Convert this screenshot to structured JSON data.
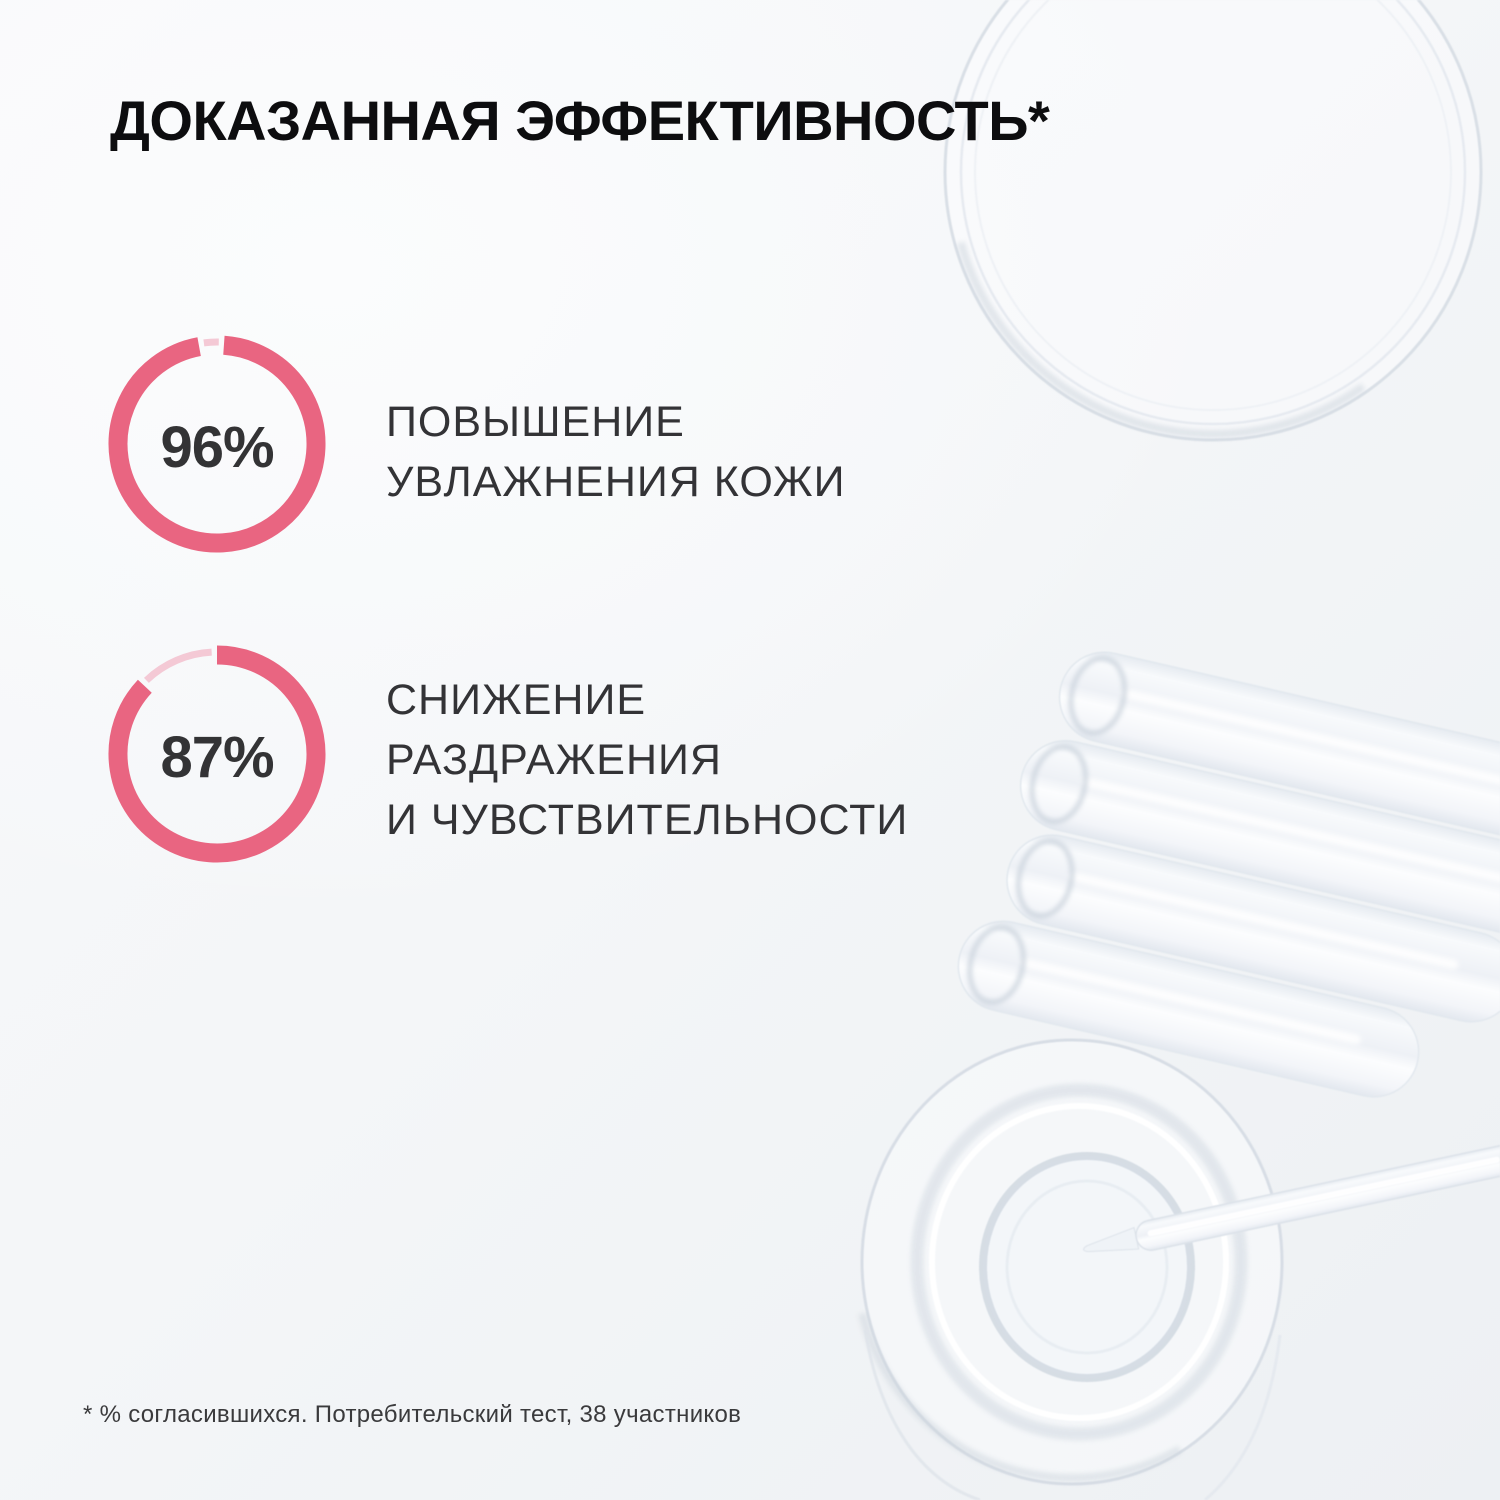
{
  "title": "ДОКАЗАННАЯ ЭФФЕКТИВНОСТЬ*",
  "stats": [
    {
      "value": "96%",
      "percent": 96,
      "label_lines": [
        "ПОВЫШЕНИЕ",
        "УВЛАЖНЕНИЯ КОЖИ"
      ]
    },
    {
      "value": "87%",
      "percent": 87,
      "label_lines": [
        "СНИЖЕНИЕ",
        "РАЗДРАЖЕНИЯ",
        "И ЧУВСТВИТЕЛЬНОСТИ"
      ]
    }
  ],
  "footnote": "* % согласившихся. Потребительский тест, 38 участников",
  "colors": {
    "ring_fill": "#e96581",
    "ring_track": "#f4c9d5",
    "title_text": "#0d0d0f",
    "body_text": "#333336",
    "background": "#f4f6f8",
    "glass_line": "#d7dde5"
  },
  "decor": {
    "top_right": "petri-dish",
    "middle_right": "glass-ampoules",
    "bottom_right": "jar-with-pipette"
  },
  "chart_data": [
    {
      "type": "pie",
      "style": "donut",
      "title": "ПОВЫШЕНИЕ УВЛАЖНЕНИЯ КОЖИ",
      "values": [
        96,
        4
      ],
      "value_label": "96%"
    },
    {
      "type": "pie",
      "style": "donut",
      "title": "СНИЖЕНИЕ РАЗДРАЖЕНИЯ И ЧУВСТВИТЕЛЬНОСТИ",
      "values": [
        87,
        13
      ],
      "value_label": "87%"
    }
  ]
}
